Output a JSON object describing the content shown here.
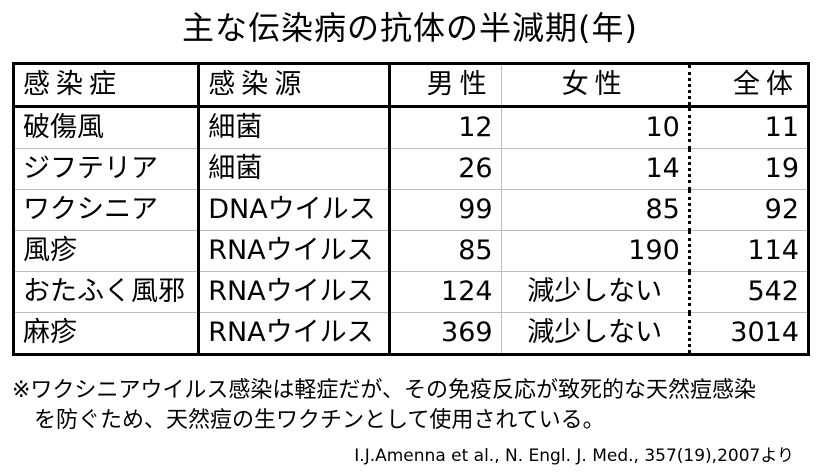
{
  "title": "主な伝染病の抗体の半減期(年)",
  "table": {
    "headers": [
      "感染症",
      "感染源",
      "男性",
      "女性",
      "全体"
    ],
    "rows": [
      [
        "破傷風",
        "細菌",
        "12",
        "10",
        "11"
      ],
      [
        "ジフテリア",
        "細菌",
        "26",
        "14",
        "19"
      ],
      [
        "ワクシニア",
        "DNAウイルス",
        "99",
        "85",
        "92"
      ],
      [
        "風疹",
        "RNAウイルス",
        "85",
        "190",
        "114"
      ],
      [
        "おたふく風邪",
        "RNAウイルス",
        "124",
        "減少しない",
        "542"
      ],
      [
        "麻疹",
        "RNAウイルス",
        "369",
        "減少しない",
        "3014"
      ]
    ]
  },
  "note": {
    "line1": "※ワクシニアウイルス感染は軽症だが、その免疫反応が致死的な天然痘感染",
    "line2": "を防ぐため、天然痘の生ワクチンとして使用されている。"
  },
  "source": "I.J.Amenna et al., N. Engl. J. Med., 357(19),2007より"
}
